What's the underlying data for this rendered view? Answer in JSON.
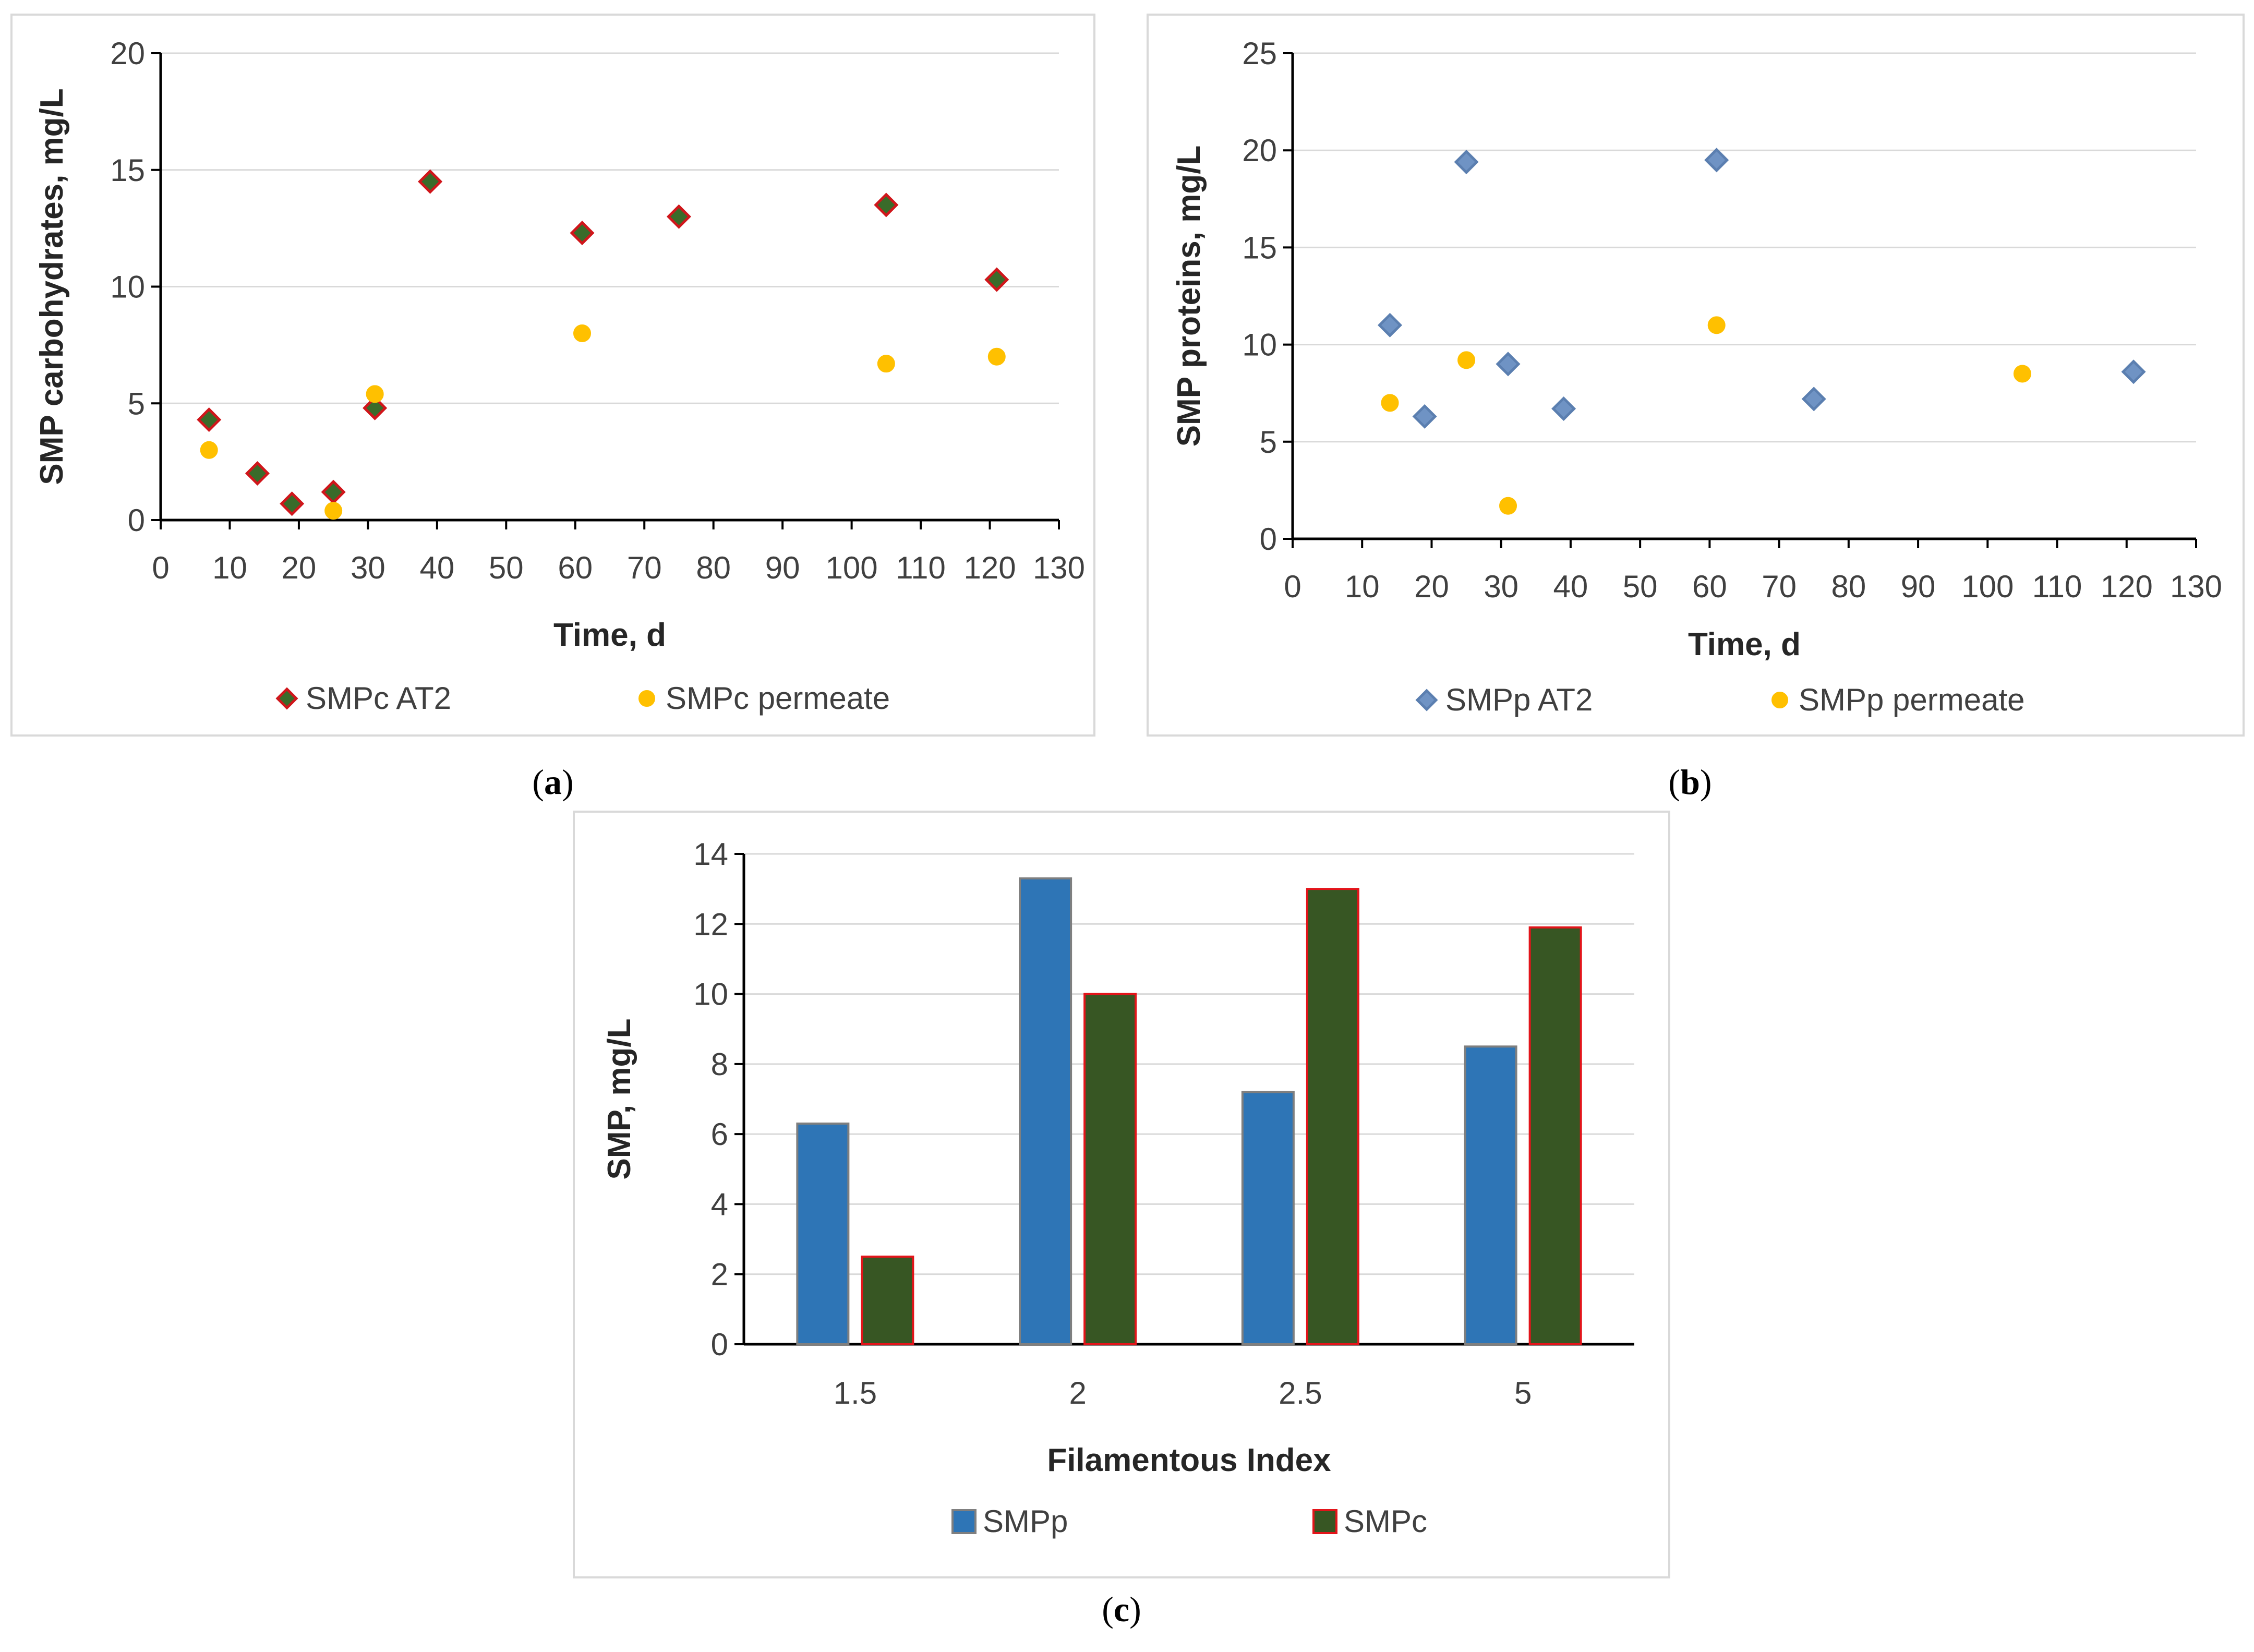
{
  "chart_data": [
    {
      "id": "a",
      "type": "scatter",
      "caption_letter": "a",
      "xlabel": "Time, d",
      "ylabel": "SMP carbohydrates, mg/L",
      "xlim": [
        0,
        130
      ],
      "ylim": [
        0,
        20
      ],
      "x_ticks": [
        0,
        10,
        20,
        30,
        40,
        50,
        60,
        70,
        80,
        90,
        100,
        110,
        120,
        130
      ],
      "y_ticks": [
        0,
        5,
        10,
        15,
        20
      ],
      "grid": "horizontal",
      "legend_position": "bottom",
      "series": [
        {
          "name": "SMPc AT2",
          "marker": "diamond",
          "fill": "#3a6b2a",
          "stroke": "#d0161b",
          "points": [
            [
              7,
              4.3
            ],
            [
              14,
              2.0
            ],
            [
              19,
              0.7
            ],
            [
              25,
              1.2
            ],
            [
              31,
              4.8
            ],
            [
              39,
              14.5
            ],
            [
              61,
              12.3
            ],
            [
              75,
              13.0
            ],
            [
              105,
              13.5
            ],
            [
              121,
              10.3
            ]
          ]
        },
        {
          "name": "SMPc permeate",
          "marker": "circle",
          "fill": "#ffc000",
          "stroke": "#ffc000",
          "points": [
            [
              7,
              3.0
            ],
            [
              25,
              0.4
            ],
            [
              31,
              5.4
            ],
            [
              61,
              8.0
            ],
            [
              105,
              6.7
            ],
            [
              121,
              7.0
            ]
          ]
        }
      ]
    },
    {
      "id": "b",
      "type": "scatter",
      "caption_letter": "b",
      "xlabel": "Time, d",
      "ylabel": "SMP proteins, mg/L",
      "xlim": [
        0,
        130
      ],
      "ylim": [
        0,
        25
      ],
      "x_ticks": [
        0,
        10,
        20,
        30,
        40,
        50,
        60,
        70,
        80,
        90,
        100,
        110,
        120,
        130
      ],
      "y_ticks": [
        0,
        5,
        10,
        15,
        20,
        25
      ],
      "grid": "horizontal",
      "legend_position": "bottom",
      "series": [
        {
          "name": "SMPp AT2",
          "marker": "diamond",
          "fill": "#6f93c4",
          "stroke": "#5b7fb0",
          "points": [
            [
              14,
              11.0
            ],
            [
              19,
              6.3
            ],
            [
              25,
              19.4
            ],
            [
              31,
              9.0
            ],
            [
              39,
              6.7
            ],
            [
              61,
              19.5
            ],
            [
              75,
              7.2
            ],
            [
              121,
              8.6
            ]
          ]
        },
        {
          "name": "SMPp permeate",
          "marker": "circle",
          "fill": "#ffc000",
          "stroke": "#ffc000",
          "points": [
            [
              14,
              7.0
            ],
            [
              25,
              9.2
            ],
            [
              31,
              1.7
            ],
            [
              61,
              11.0
            ],
            [
              105,
              8.5
            ]
          ]
        }
      ]
    },
    {
      "id": "c",
      "type": "bar",
      "caption_letter": "c",
      "xlabel": "Filamentous Index",
      "ylabel": "SMP, mg/L",
      "categories": [
        "1.5",
        "2",
        "2.5",
        "5"
      ],
      "ylim": [
        0,
        14
      ],
      "y_ticks": [
        0,
        2,
        4,
        6,
        8,
        10,
        12,
        14
      ],
      "grid": "horizontal",
      "legend_position": "bottom",
      "series": [
        {
          "name": "SMPp",
          "fill": "#2e75b6",
          "stroke": "#7f7f7f",
          "values": [
            6.3,
            13.3,
            7.2,
            8.5
          ]
        },
        {
          "name": "SMPc",
          "fill": "#375623",
          "stroke": "#e3141a",
          "values": [
            2.5,
            10.0,
            13.0,
            11.9
          ]
        }
      ]
    }
  ]
}
